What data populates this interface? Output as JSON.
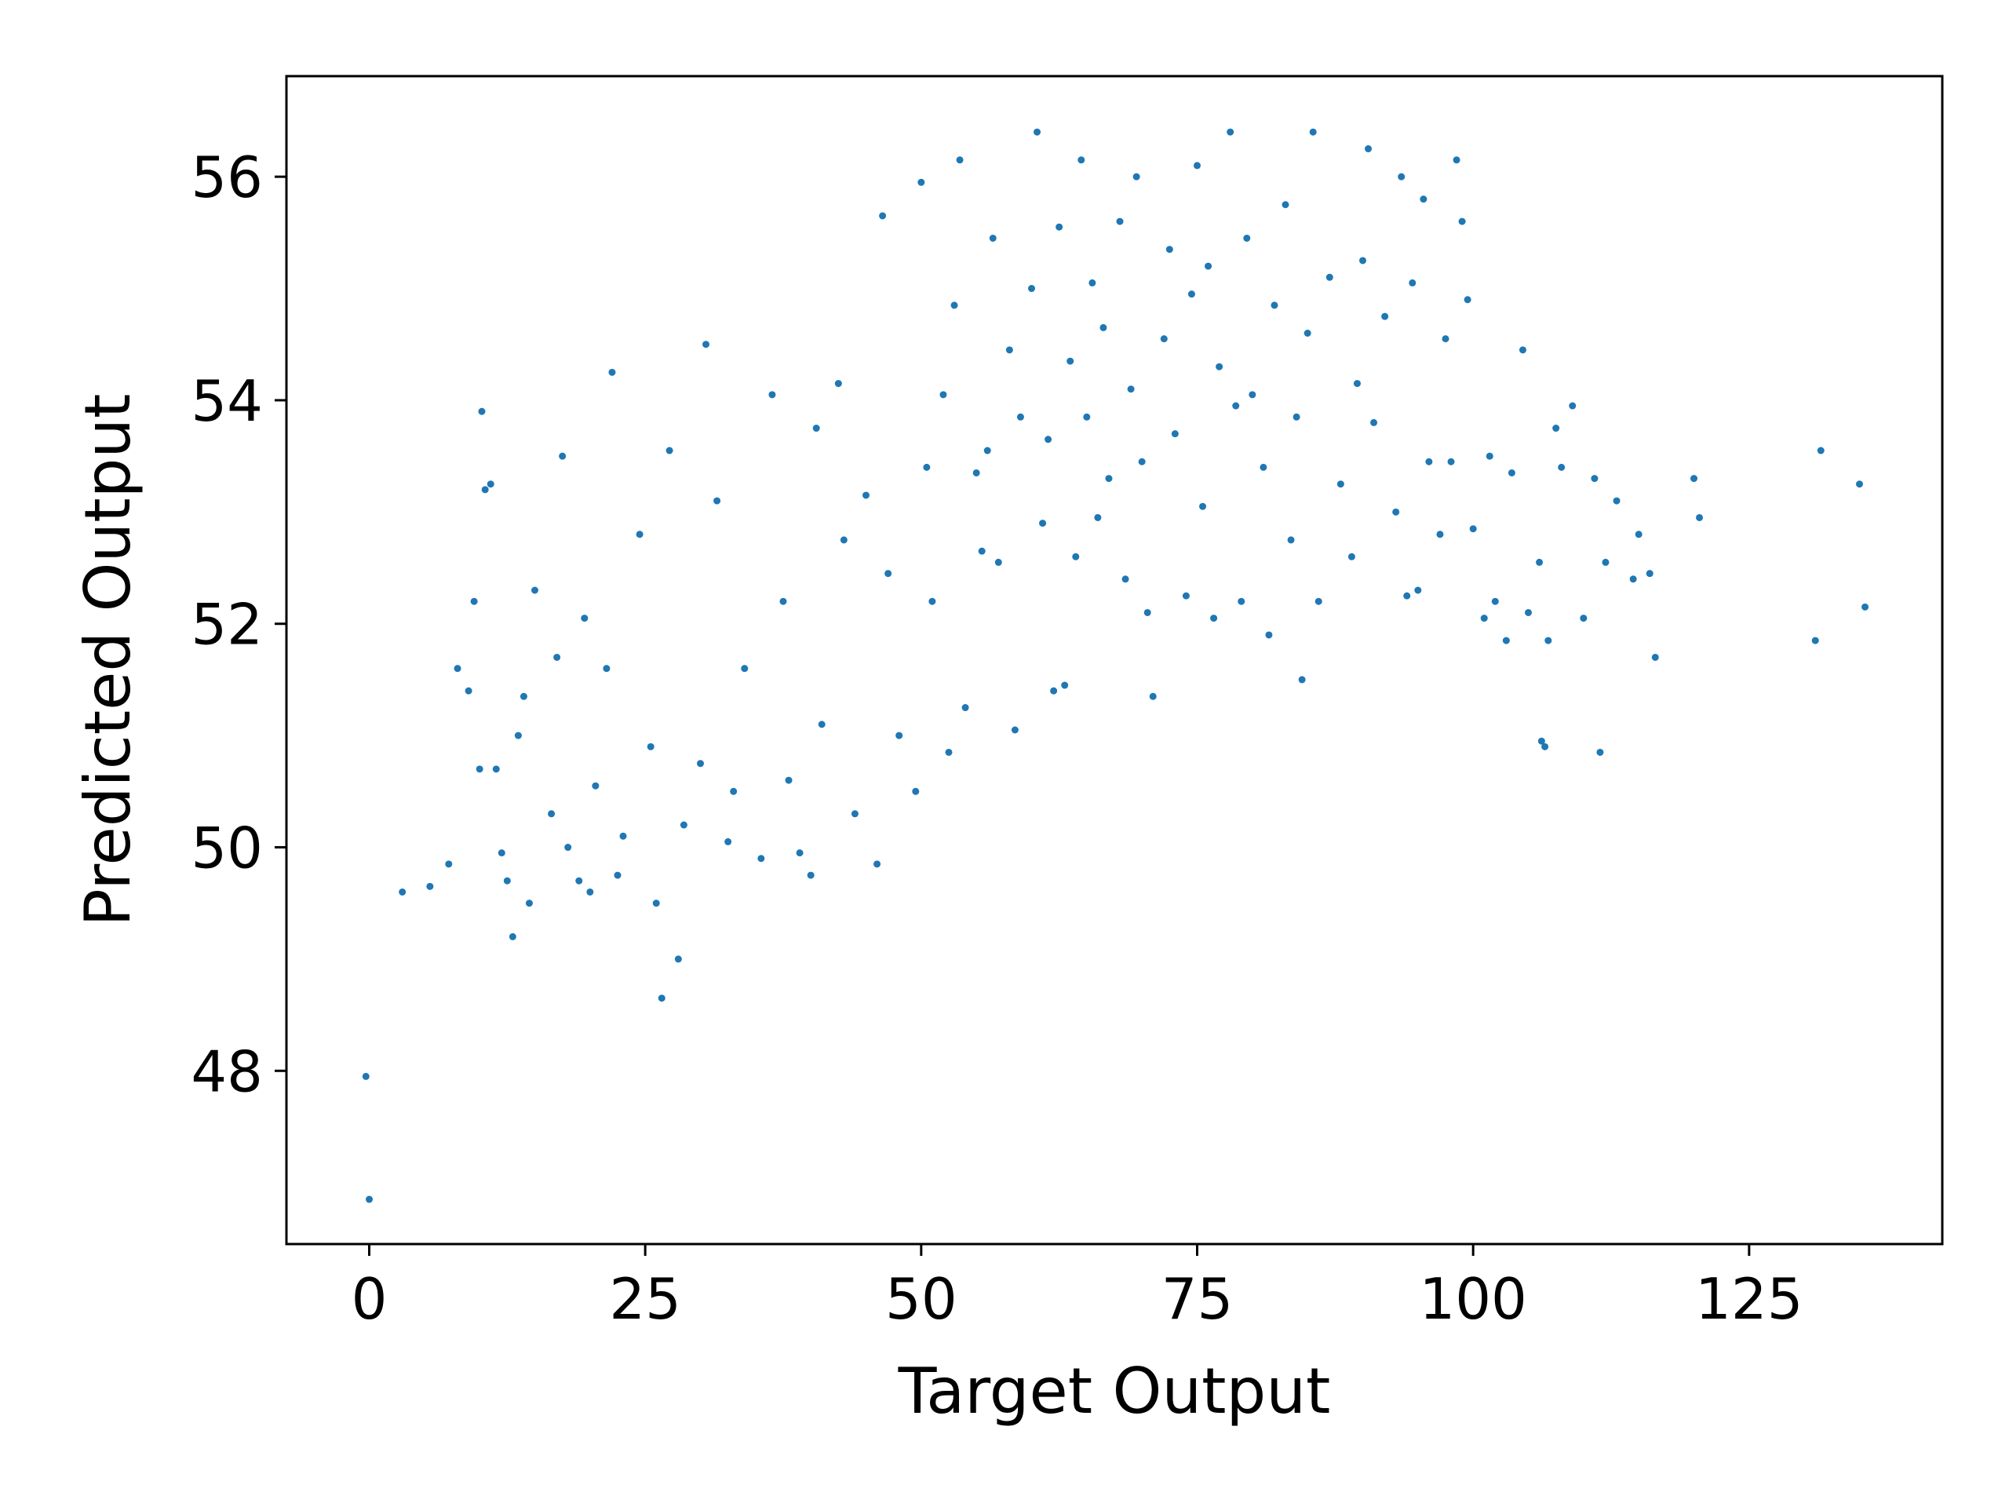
{
  "chart_data": {
    "type": "scatter",
    "title": "",
    "xlabel": "Target Output",
    "ylabel": "Predicted Output",
    "xlim": [
      -7.5,
      142.5
    ],
    "ylim": [
      46.45,
      56.9
    ],
    "xticks": [
      0,
      25,
      50,
      75,
      100,
      125
    ],
    "yticks": [
      48,
      50,
      52,
      54,
      56
    ],
    "xtick_labels": [
      "0",
      "25",
      "50",
      "75",
      "100",
      "125"
    ],
    "ytick_labels": [
      "48",
      "50",
      "52",
      "54",
      "56"
    ],
    "grid": false,
    "legend": "none",
    "marker_color": "#1f77b4",
    "series": [
      {
        "points": [
          [
            -0.3,
            47.95
          ],
          [
            0.0,
            46.85
          ],
          [
            3.0,
            49.6
          ],
          [
            5.5,
            49.65
          ],
          [
            7.2,
            49.85
          ],
          [
            8.0,
            51.6
          ],
          [
            9.0,
            51.4
          ],
          [
            9.5,
            52.2
          ],
          [
            10.0,
            50.7
          ],
          [
            10.2,
            53.9
          ],
          [
            10.5,
            53.2
          ],
          [
            11.0,
            53.25
          ],
          [
            11.5,
            50.7
          ],
          [
            12.0,
            49.95
          ],
          [
            12.5,
            49.7
          ],
          [
            13.0,
            49.2
          ],
          [
            13.5,
            51.0
          ],
          [
            14.0,
            51.35
          ],
          [
            14.5,
            49.5
          ],
          [
            15.0,
            52.3
          ],
          [
            16.5,
            50.3
          ],
          [
            17.0,
            51.7
          ],
          [
            17.5,
            53.5
          ],
          [
            18.0,
            50.0
          ],
          [
            19.0,
            49.7
          ],
          [
            19.5,
            52.05
          ],
          [
            20.0,
            49.6
          ],
          [
            20.5,
            50.55
          ],
          [
            21.5,
            51.6
          ],
          [
            22.0,
            54.25
          ],
          [
            22.5,
            49.75
          ],
          [
            23.0,
            50.1
          ],
          [
            24.5,
            52.8
          ],
          [
            25.5,
            50.9
          ],
          [
            26.0,
            49.5
          ],
          [
            26.5,
            48.65
          ],
          [
            27.2,
            53.55
          ],
          [
            28.0,
            49.0
          ],
          [
            28.5,
            50.2
          ],
          [
            30.0,
            50.75
          ],
          [
            30.5,
            54.5
          ],
          [
            31.5,
            53.1
          ],
          [
            32.5,
            50.05
          ],
          [
            33.0,
            50.5
          ],
          [
            34.0,
            51.6
          ],
          [
            35.5,
            49.9
          ],
          [
            36.5,
            54.05
          ],
          [
            37.5,
            52.2
          ],
          [
            38.0,
            50.6
          ],
          [
            39.0,
            49.95
          ],
          [
            40.0,
            49.75
          ],
          [
            40.5,
            53.75
          ],
          [
            41.0,
            51.1
          ],
          [
            42.5,
            54.15
          ],
          [
            43.0,
            52.75
          ],
          [
            44.0,
            50.3
          ],
          [
            45.0,
            53.15
          ],
          [
            46.0,
            49.85
          ],
          [
            46.5,
            55.65
          ],
          [
            47.0,
            52.45
          ],
          [
            48.0,
            51.0
          ],
          [
            49.5,
            50.5
          ],
          [
            50.0,
            55.95
          ],
          [
            50.5,
            53.4
          ],
          [
            51.0,
            52.2
          ],
          [
            52.0,
            54.05
          ],
          [
            52.5,
            50.85
          ],
          [
            53.0,
            54.85
          ],
          [
            53.5,
            56.15
          ],
          [
            54.0,
            51.25
          ],
          [
            55.0,
            53.35
          ],
          [
            55.5,
            52.65
          ],
          [
            56.0,
            53.55
          ],
          [
            56.5,
            55.45
          ],
          [
            57.0,
            52.55
          ],
          [
            58.0,
            54.45
          ],
          [
            58.5,
            51.05
          ],
          [
            59.0,
            53.85
          ],
          [
            60.0,
            55.0
          ],
          [
            60.5,
            56.4
          ],
          [
            61.0,
            52.9
          ],
          [
            61.5,
            53.65
          ],
          [
            62.0,
            51.4
          ],
          [
            62.5,
            55.55
          ],
          [
            63.0,
            51.45
          ],
          [
            63.5,
            54.35
          ],
          [
            64.0,
            52.6
          ],
          [
            64.5,
            56.15
          ],
          [
            65.0,
            53.85
          ],
          [
            65.5,
            55.05
          ],
          [
            66.0,
            52.95
          ],
          [
            66.5,
            54.65
          ],
          [
            67.0,
            53.3
          ],
          [
            68.0,
            55.6
          ],
          [
            68.5,
            52.4
          ],
          [
            69.0,
            54.1
          ],
          [
            69.5,
            56.0
          ],
          [
            70.0,
            53.45
          ],
          [
            70.5,
            52.1
          ],
          [
            71.0,
            51.35
          ],
          [
            72.0,
            54.55
          ],
          [
            72.5,
            55.35
          ],
          [
            73.0,
            53.7
          ],
          [
            74.0,
            52.25
          ],
          [
            74.5,
            54.95
          ],
          [
            75.0,
            56.1
          ],
          [
            75.5,
            53.05
          ],
          [
            76.0,
            55.2
          ],
          [
            76.5,
            52.05
          ],
          [
            77.0,
            54.3
          ],
          [
            78.0,
            56.4
          ],
          [
            78.5,
            53.95
          ],
          [
            79.0,
            52.2
          ],
          [
            79.5,
            55.45
          ],
          [
            80.0,
            54.05
          ],
          [
            81.0,
            53.4
          ],
          [
            81.5,
            51.9
          ],
          [
            82.0,
            54.85
          ],
          [
            83.0,
            55.75
          ],
          [
            83.5,
            52.75
          ],
          [
            84.0,
            53.85
          ],
          [
            84.5,
            51.5
          ],
          [
            85.0,
            54.6
          ],
          [
            85.5,
            56.4
          ],
          [
            86.0,
            52.2
          ],
          [
            87.0,
            55.1
          ],
          [
            88.0,
            53.25
          ],
          [
            89.0,
            52.6
          ],
          [
            89.5,
            54.15
          ],
          [
            90.0,
            55.25
          ],
          [
            90.5,
            56.25
          ],
          [
            91.0,
            53.8
          ],
          [
            92.0,
            54.75
          ],
          [
            93.0,
            53.0
          ],
          [
            93.5,
            56.0
          ],
          [
            94.0,
            52.25
          ],
          [
            94.5,
            55.05
          ],
          [
            95.0,
            52.3
          ],
          [
            95.5,
            55.8
          ],
          [
            96.0,
            53.45
          ],
          [
            97.0,
            52.8
          ],
          [
            97.5,
            54.55
          ],
          [
            98.0,
            53.45
          ],
          [
            98.5,
            56.15
          ],
          [
            99.0,
            55.6
          ],
          [
            99.5,
            54.9
          ],
          [
            100.0,
            52.85
          ],
          [
            101.0,
            52.05
          ],
          [
            101.5,
            53.5
          ],
          [
            102.0,
            52.2
          ],
          [
            103.0,
            51.85
          ],
          [
            103.5,
            53.35
          ],
          [
            104.5,
            54.45
          ],
          [
            105.0,
            52.1
          ],
          [
            106.0,
            52.55
          ],
          [
            106.2,
            50.95
          ],
          [
            106.5,
            50.9
          ],
          [
            106.8,
            51.85
          ],
          [
            107.5,
            53.75
          ],
          [
            108.0,
            53.4
          ],
          [
            109.0,
            53.95
          ],
          [
            110.0,
            52.05
          ],
          [
            111.0,
            53.3
          ],
          [
            111.5,
            50.85
          ],
          [
            112.0,
            52.55
          ],
          [
            113.0,
            53.1
          ],
          [
            114.5,
            52.4
          ],
          [
            115.0,
            52.8
          ],
          [
            116.0,
            52.45
          ],
          [
            116.5,
            51.7
          ],
          [
            120.0,
            53.3
          ],
          [
            120.5,
            52.95
          ],
          [
            131.0,
            51.85
          ],
          [
            131.5,
            53.55
          ],
          [
            135.0,
            53.25
          ],
          [
            135.5,
            52.15
          ]
        ]
      }
    ]
  }
}
